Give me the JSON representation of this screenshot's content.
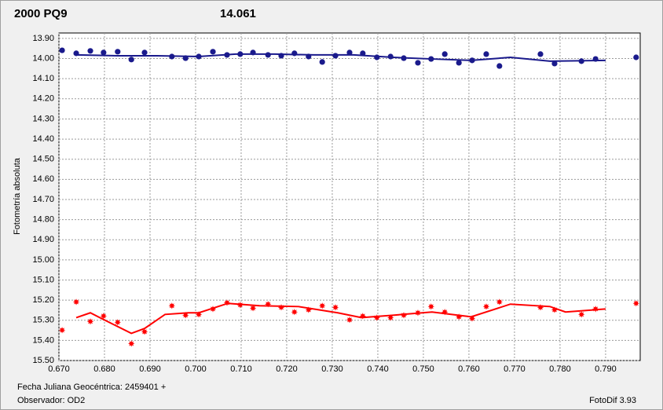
{
  "chart_data": {
    "type": "scatter",
    "title": "2000 PQ9",
    "title_color": "#ff0000",
    "subtitle": "14.061",
    "subtitle_color": "#1a1a8c",
    "y_label": "Fotometría absoluta",
    "x_note": "Fecha Juliana Geocéntrica: 2459401 +",
    "observer": "Observador: OD2",
    "software": "FotoDif 3.93",
    "xlim": [
      0.67,
      0.7976
    ],
    "ylim": [
      13.873,
      15.5
    ],
    "y_inverted": true,
    "grid": true,
    "xticks": [
      {
        "value": 0.67,
        "label": "0.670"
      },
      {
        "value": 0.68,
        "label": "0.680"
      },
      {
        "value": 0.69,
        "label": "0.690"
      },
      {
        "value": 0.7,
        "label": "0.700"
      },
      {
        "value": 0.71,
        "label": "0.710"
      },
      {
        "value": 0.72,
        "label": "0.720"
      },
      {
        "value": 0.73,
        "label": "0.730"
      },
      {
        "value": 0.74,
        "label": "0.740"
      },
      {
        "value": 0.75,
        "label": "0.750"
      },
      {
        "value": 0.76,
        "label": "0.760"
      },
      {
        "value": 0.77,
        "label": "0.770"
      },
      {
        "value": 0.78,
        "label": "0.780"
      },
      {
        "value": 0.79,
        "label": "0.790"
      }
    ],
    "yticks": [
      {
        "value": 13.9,
        "label": "13.90"
      },
      {
        "value": 14.0,
        "label": "14.00"
      },
      {
        "value": 14.1,
        "label": "14.10"
      },
      {
        "value": 14.2,
        "label": "14.20"
      },
      {
        "value": 14.3,
        "label": "14.30"
      },
      {
        "value": 14.4,
        "label": "14.40"
      },
      {
        "value": 14.5,
        "label": "14.50"
      },
      {
        "value": 14.6,
        "label": "14.60"
      },
      {
        "value": 14.7,
        "label": "14.70"
      },
      {
        "value": 14.8,
        "label": "14.80"
      },
      {
        "value": 14.9,
        "label": "14.90"
      },
      {
        "value": 15.0,
        "label": "15.00"
      },
      {
        "value": 15.1,
        "label": "15.10"
      },
      {
        "value": 15.2,
        "label": "15.20"
      },
      {
        "value": 15.3,
        "label": "15.30"
      },
      {
        "value": 15.4,
        "label": "15.40"
      },
      {
        "value": 15.5,
        "label": "15.50"
      }
    ],
    "series": [
      {
        "color": "#1a1a8c",
        "marker": "circle",
        "x": [
          0.6707,
          0.6738,
          0.6769,
          0.6798,
          0.6829,
          0.6859,
          0.6888,
          0.6948,
          0.6978,
          0.7007,
          0.7038,
          0.7069,
          0.7098,
          0.7126,
          0.7159,
          0.7188,
          0.7217,
          0.7248,
          0.7278,
          0.7307,
          0.7338,
          0.7367,
          0.7398,
          0.7428,
          0.7457,
          0.7488,
          0.7517,
          0.7547,
          0.7578,
          0.7607,
          0.7638,
          0.7667,
          0.7757,
          0.7788,
          0.7847,
          0.7878,
          0.7967
        ],
        "values": [
          13.959,
          13.974,
          13.962,
          13.97,
          13.966,
          14.005,
          13.97,
          13.99,
          13.998,
          13.99,
          13.966,
          13.982,
          13.978,
          13.97,
          13.982,
          13.986,
          13.974,
          13.99,
          14.017,
          13.986,
          13.97,
          13.974,
          13.994,
          13.99,
          13.998,
          14.021,
          14.002,
          13.978,
          14.021,
          14.009,
          13.978,
          14.037,
          13.978,
          14.025,
          14.013,
          14.002,
          13.994
        ],
        "fit": {
          "x": [
            0.6738,
            0.6829,
            0.6916,
            0.7007,
            0.7088,
            0.7174,
            0.726,
            0.7347,
            0.7433,
            0.7519,
            0.7605,
            0.7691,
            0.7778,
            0.79
          ],
          "values": [
            13.982,
            13.986,
            13.986,
            13.99,
            13.978,
            13.978,
            13.982,
            13.982,
            13.994,
            14.002,
            14.009,
            13.994,
            14.013,
            14.009
          ]
        }
      },
      {
        "color": "#ff0000",
        "marker": "star",
        "x": [
          0.6707,
          0.6738,
          0.6769,
          0.6798,
          0.6829,
          0.6859,
          0.6888,
          0.6948,
          0.6978,
          0.7007,
          0.7038,
          0.7069,
          0.7098,
          0.7126,
          0.7159,
          0.7188,
          0.7217,
          0.7248,
          0.7278,
          0.7307,
          0.7338,
          0.7367,
          0.7398,
          0.7428,
          0.7457,
          0.7488,
          0.7517,
          0.7547,
          0.7578,
          0.7607,
          0.7638,
          0.7667,
          0.7757,
          0.7788,
          0.7847,
          0.7878,
          0.7967
        ],
        "values": [
          15.349,
          15.209,
          15.306,
          15.279,
          15.31,
          15.416,
          15.357,
          15.228,
          15.275,
          15.271,
          15.244,
          15.213,
          15.224,
          15.24,
          15.22,
          15.236,
          15.259,
          15.248,
          15.228,
          15.236,
          15.298,
          15.279,
          15.287,
          15.287,
          15.275,
          15.263,
          15.232,
          15.259,
          15.283,
          15.291,
          15.232,
          15.209,
          15.236,
          15.248,
          15.271,
          15.244,
          15.216
        ],
        "fit": {
          "x": [
            0.6738,
            0.6769,
            0.6803,
            0.6859,
            0.6888,
            0.6933,
            0.6984,
            0.7007,
            0.7071,
            0.714,
            0.7226,
            0.7312,
            0.7364,
            0.7433,
            0.7519,
            0.7605,
            0.7691,
            0.7778,
            0.7812,
            0.79
          ],
          "values": [
            15.287,
            15.263,
            15.302,
            15.365,
            15.341,
            15.271,
            15.263,
            15.263,
            15.216,
            15.228,
            15.232,
            15.263,
            15.287,
            15.275,
            15.259,
            15.283,
            15.22,
            15.232,
            15.259,
            15.244
          ]
        }
      }
    ]
  }
}
